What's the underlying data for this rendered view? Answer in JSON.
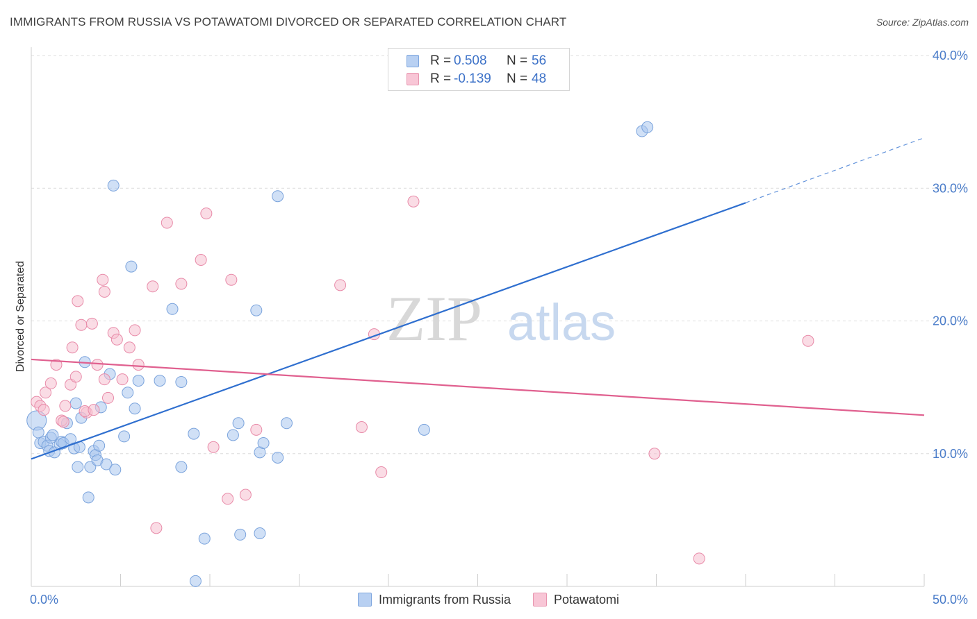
{
  "title": "IMMIGRANTS FROM RUSSIA VS POTAWATOMI DIVORCED OR SEPARATED CORRELATION CHART",
  "source": "Source: ZipAtlas.com",
  "watermark": {
    "zip": "ZIP",
    "atlas": "atlas"
  },
  "legend": {
    "rows": [
      {
        "r_label": "R =",
        "r_value": "0.508",
        "n_label": "N =",
        "n_value": "56",
        "color": "#b8d0f2",
        "border": "#7ea6de"
      },
      {
        "r_label": "R =",
        "r_value": "-0.139",
        "n_label": "N =",
        "n_value": "48",
        "color": "#f8c6d6",
        "border": "#e896b0"
      }
    ]
  },
  "bottom_legend": [
    {
      "label": "Immigrants from Russia",
      "color": "#b8d0f2",
      "border": "#7ea6de"
    },
    {
      "label": "Potawatomi",
      "color": "#f8c6d6",
      "border": "#e896b0"
    }
  ],
  "chart_data": {
    "type": "scatter",
    "ylabel": "Divorced or Separated",
    "xlabel": "",
    "xlim": [
      0,
      50
    ],
    "ylim": [
      0,
      40
    ],
    "x_tick_labels": [
      {
        "value": 0,
        "label": "0.0%"
      },
      {
        "value": 50,
        "label": "50.0%"
      }
    ],
    "y_tick_labels": [
      {
        "value": 10,
        "label": "10.0%"
      },
      {
        "value": 20,
        "label": "20.0%"
      },
      {
        "value": 30,
        "label": "30.0%"
      },
      {
        "value": 40,
        "label": "40.0%"
      }
    ],
    "grid": true,
    "series": [
      {
        "name": "Immigrants from Russia",
        "color": "#a9c6ee",
        "stroke": "#7aa3dc",
        "trend": {
          "x0": 0,
          "y0": 9.6,
          "x1": 40,
          "y1": 28.9,
          "dash_x1": 50,
          "dash_y1": 33.8,
          "color": "#2f6fcf"
        },
        "points": [
          [
            0.3,
            12.5
          ],
          [
            0.4,
            11.6
          ],
          [
            0.5,
            10.8
          ],
          [
            0.7,
            10.9
          ],
          [
            0.9,
            10.6
          ],
          [
            1.0,
            10.2
          ],
          [
            1.1,
            11.2
          ],
          [
            1.3,
            10.1
          ],
          [
            1.6,
            10.7
          ],
          [
            1.7,
            10.9
          ],
          [
            1.8,
            10.8
          ],
          [
            2.0,
            12.3
          ],
          [
            2.2,
            11.1
          ],
          [
            2.4,
            10.4
          ],
          [
            2.5,
            13.8
          ],
          [
            2.8,
            12.7
          ],
          [
            2.7,
            10.5
          ],
          [
            2.6,
            9.0
          ],
          [
            3.0,
            16.9
          ],
          [
            3.3,
            9.0
          ],
          [
            3.5,
            10.2
          ],
          [
            3.6,
            9.9
          ],
          [
            3.7,
            9.5
          ],
          [
            3.8,
            10.6
          ],
          [
            3.9,
            13.5
          ],
          [
            4.2,
            9.2
          ],
          [
            4.4,
            16.0
          ],
          [
            4.7,
            8.8
          ],
          [
            5.2,
            11.3
          ],
          [
            5.4,
            14.6
          ],
          [
            5.8,
            13.4
          ],
          [
            6.0,
            15.5
          ],
          [
            7.2,
            15.5
          ],
          [
            8.4,
            15.4
          ],
          [
            9.1,
            11.5
          ],
          [
            11.3,
            11.4
          ],
          [
            11.6,
            12.3
          ],
          [
            12.8,
            10.1
          ],
          [
            13.8,
            9.7
          ],
          [
            14.3,
            12.3
          ],
          [
            3.2,
            6.7
          ],
          [
            9.7,
            3.6
          ],
          [
            11.7,
            3.9
          ],
          [
            13.0,
            10.8
          ],
          [
            12.6,
            20.8
          ],
          [
            12.8,
            4.0
          ],
          [
            7.9,
            20.9
          ],
          [
            5.6,
            24.1
          ],
          [
            4.6,
            30.2
          ],
          [
            13.8,
            29.4
          ],
          [
            22.0,
            11.8
          ],
          [
            9.2,
            0.4
          ],
          [
            34.2,
            34.3
          ],
          [
            34.5,
            34.6
          ],
          [
            8.4,
            9.0
          ],
          [
            1.2,
            11.4
          ]
        ]
      },
      {
        "name": "Potawatomi",
        "color": "#f6bfd0",
        "stroke": "#e88aa8",
        "trend": {
          "x0": 0,
          "y0": 17.1,
          "x1": 50,
          "y1": 12.9,
          "color": "#e0608f"
        },
        "points": [
          [
            0.3,
            13.9
          ],
          [
            0.5,
            13.6
          ],
          [
            0.7,
            13.3
          ],
          [
            0.8,
            14.6
          ],
          [
            1.1,
            15.3
          ],
          [
            1.4,
            16.7
          ],
          [
            1.7,
            12.5
          ],
          [
            1.9,
            13.6
          ],
          [
            2.2,
            15.2
          ],
          [
            2.5,
            15.8
          ],
          [
            2.6,
            21.5
          ],
          [
            2.8,
            19.7
          ],
          [
            3.1,
            13.1
          ],
          [
            3.4,
            19.8
          ],
          [
            3.7,
            16.7
          ],
          [
            4.1,
            15.6
          ],
          [
            4.3,
            14.2
          ],
          [
            4.6,
            19.1
          ],
          [
            4.8,
            18.6
          ],
          [
            5.1,
            15.6
          ],
          [
            5.5,
            18.0
          ],
          [
            5.8,
            19.3
          ],
          [
            6.0,
            16.7
          ],
          [
            6.8,
            22.6
          ],
          [
            7.0,
            4.4
          ],
          [
            7.6,
            27.4
          ],
          [
            8.4,
            22.8
          ],
          [
            9.5,
            24.6
          ],
          [
            9.8,
            28.1
          ],
          [
            10.2,
            10.5
          ],
          [
            11.0,
            6.6
          ],
          [
            11.2,
            23.1
          ],
          [
            12.0,
            6.9
          ],
          [
            12.6,
            11.8
          ],
          [
            17.3,
            22.7
          ],
          [
            18.5,
            12.0
          ],
          [
            19.2,
            19.0
          ],
          [
            19.6,
            8.6
          ],
          [
            21.4,
            29.0
          ],
          [
            34.9,
            10.0
          ],
          [
            37.4,
            2.1
          ],
          [
            43.5,
            18.5
          ],
          [
            4.0,
            23.1
          ],
          [
            4.1,
            22.2
          ],
          [
            1.8,
            12.4
          ],
          [
            2.3,
            18.0
          ],
          [
            3.0,
            13.2
          ],
          [
            3.5,
            13.3
          ]
        ]
      }
    ]
  }
}
